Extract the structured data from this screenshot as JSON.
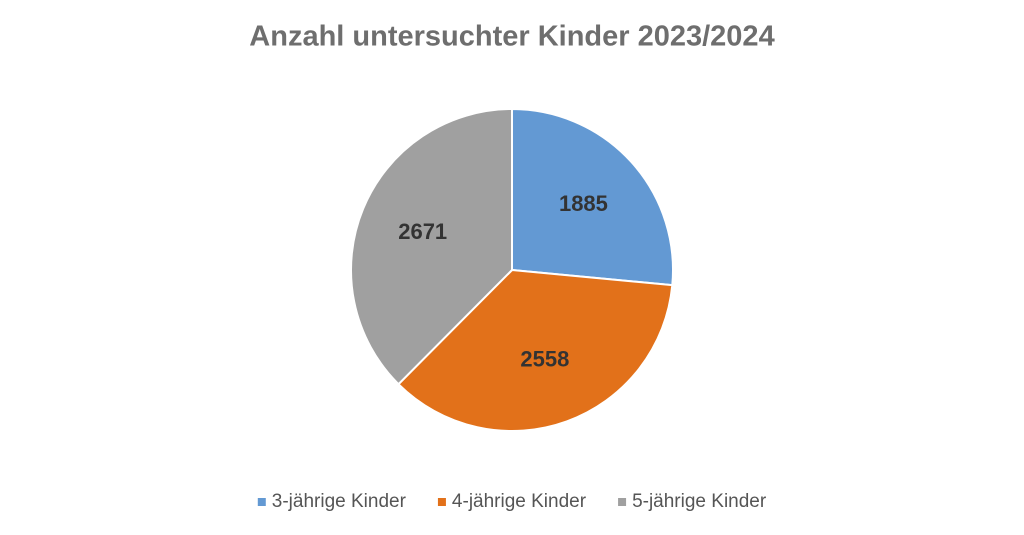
{
  "chart_data": {
    "type": "pie",
    "title": "Anzahl untersuchter Kinder 2023/2024",
    "categories": [
      "3-jährige Kinder",
      "4-jährige Kinder",
      "5-jährige Kinder"
    ],
    "values": [
      1885,
      2558,
      2671
    ],
    "colors": [
      "#6399d3",
      "#e2711a",
      "#a0a0a0"
    ],
    "legend": "bottom"
  }
}
